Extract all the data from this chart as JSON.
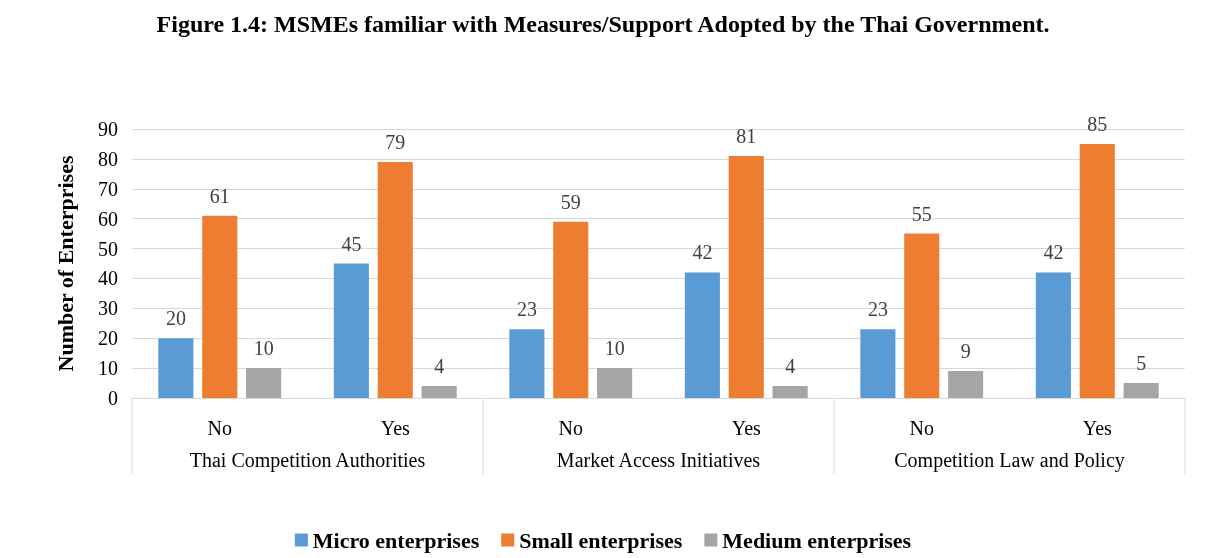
{
  "chart_data": {
    "type": "bar",
    "title": "Figure 1.4: MSMEs familiar with Measures/Support Adopted by the Thai Government.",
    "ylabel": "Number of Enterprises",
    "categories": [
      "No",
      "Yes",
      "No",
      "Yes",
      "No",
      "Yes"
    ],
    "annotations": [
      "Thai Competition Authorities",
      "Market Access Initiatives",
      "Competition Law and Policy"
    ],
    "series": [
      {
        "name": "Micro enterprises",
        "color": "#5b9bd5",
        "values": [
          20,
          45,
          23,
          42,
          23,
          42
        ]
      },
      {
        "name": "Small enterprises",
        "color": "#ed7d31",
        "values": [
          61,
          79,
          59,
          81,
          55,
          85
        ]
      },
      {
        "name": "Medium enterprises",
        "color": "#a5a5a5",
        "values": [
          10,
          4,
          10,
          4,
          9,
          5
        ]
      }
    ],
    "ylim": [
      0,
      90
    ],
    "yticks": [
      0,
      10,
      20,
      30,
      40,
      50,
      60,
      70,
      80,
      90
    ],
    "grid": "y",
    "legend": "bottom",
    "data_labels": true
  }
}
